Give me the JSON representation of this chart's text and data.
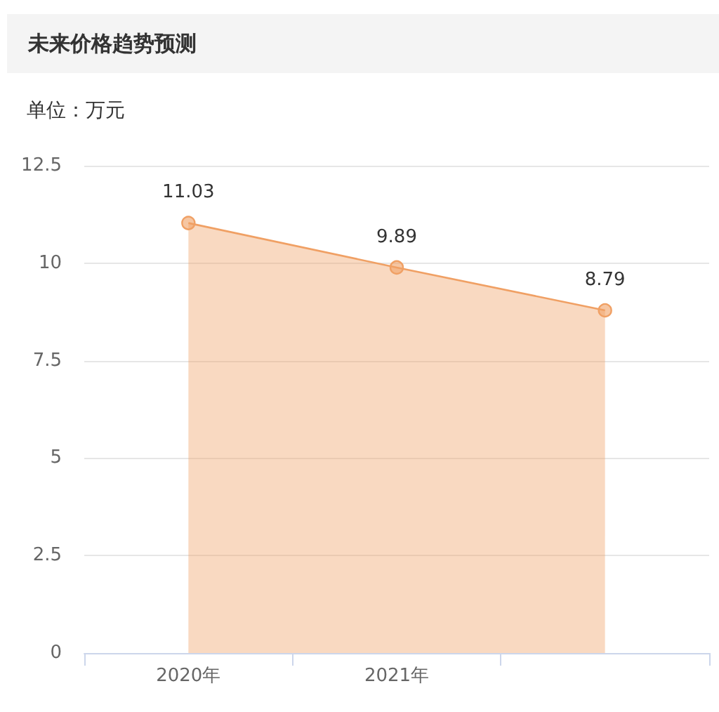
{
  "chart_data": {
    "type": "area",
    "title": "未来价格趋势预测",
    "subtitle": "单位：万元",
    "categories": [
      "2020年",
      "2021年",
      null
    ],
    "series": [
      {
        "color": "#f0a064",
        "values": [
          11.03,
          9.89,
          8.79
        ]
      }
    ],
    "ylim": [
      0,
      12.5
    ],
    "yticks": [
      0,
      2.5,
      5,
      7.5,
      10,
      12.5
    ],
    "grid": "y",
    "data_labels": true,
    "marker": "circle"
  }
}
